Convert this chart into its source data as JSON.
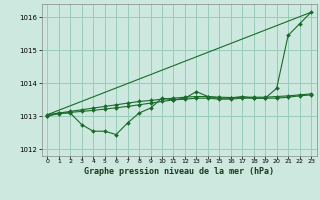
{
  "background_color": "#cce8df",
  "grid_color": "#99ccbb",
  "line_color": "#1a6b2a",
  "marker_color": "#1a6b2a",
  "title": "Graphe pression niveau de la mer (hPa)",
  "ylim": [
    1011.8,
    1016.4
  ],
  "xlim": [
    -0.5,
    23.5
  ],
  "yticks": [
    1012,
    1013,
    1014,
    1015,
    1016
  ],
  "xticks": [
    0,
    1,
    2,
    3,
    4,
    5,
    6,
    7,
    8,
    9,
    10,
    11,
    12,
    13,
    14,
    15,
    16,
    17,
    18,
    19,
    20,
    21,
    22,
    23
  ],
  "series": [
    {
      "x": [
        0,
        1,
        2,
        3,
        4,
        5,
        6,
        7,
        8,
        9,
        10,
        11,
        12,
        13,
        14,
        15,
        16,
        17,
        18,
        19,
        20,
        21,
        22,
        23
      ],
      "y": [
        1013.0,
        1013.1,
        1013.1,
        1012.75,
        1012.55,
        1012.55,
        1012.45,
        1012.8,
        1013.1,
        1013.25,
        1013.55,
        1013.5,
        1013.55,
        1013.75,
        1013.6,
        1013.55,
        1013.55,
        1013.6,
        1013.55,
        1013.55,
        1013.85,
        1015.45,
        1015.8,
        1016.15
      ]
    },
    {
      "x": [
        0,
        23
      ],
      "y": [
        1013.05,
        1016.15
      ]
    },
    {
      "x": [
        0,
        1,
        2,
        3,
        4,
        5,
        6,
        7,
        8,
        9,
        10,
        11,
        12,
        13,
        14,
        15,
        16,
        17,
        18,
        19,
        20,
        21,
        22,
        23
      ],
      "y": [
        1013.05,
        1013.1,
        1013.15,
        1013.2,
        1013.25,
        1013.3,
        1013.35,
        1013.4,
        1013.45,
        1013.48,
        1013.52,
        1013.55,
        1013.58,
        1013.6,
        1013.6,
        1013.58,
        1013.57,
        1013.58,
        1013.58,
        1013.58,
        1013.6,
        1013.62,
        1013.65,
        1013.68
      ]
    },
    {
      "x": [
        0,
        1,
        2,
        3,
        4,
        5,
        6,
        7,
        8,
        9,
        10,
        11,
        12,
        13,
        14,
        15,
        16,
        17,
        18,
        19,
        20,
        21,
        22,
        23
      ],
      "y": [
        1013.02,
        1013.08,
        1013.12,
        1013.15,
        1013.18,
        1013.22,
        1013.26,
        1013.3,
        1013.35,
        1013.4,
        1013.45,
        1013.5,
        1013.52,
        1013.55,
        1013.55,
        1013.52,
        1013.52,
        1013.55,
        1013.55,
        1013.55,
        1013.55,
        1013.58,
        1013.62,
        1013.65
      ]
    }
  ]
}
